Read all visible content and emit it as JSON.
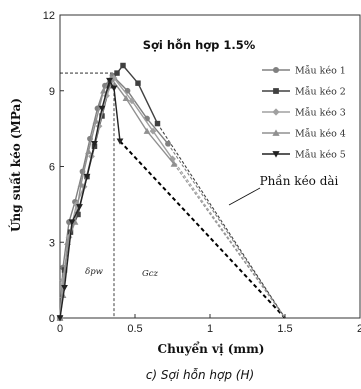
{
  "chart_data": {
    "type": "line",
    "title": "Sợi hỗn hợp 1.5%",
    "xlabel": "Chuyển vị (mm)",
    "ylabel": "Ứng suất kéo  (MPa)",
    "caption": "c) Sợi hỗn hợp (H)",
    "xlim": [
      0,
      2
    ],
    "ylim": [
      0,
      12
    ],
    "x_ticks": [
      0,
      0.5,
      1,
      1.5,
      2
    ],
    "x_tick_labels": [
      "0",
      "0.5",
      "1",
      "1.5",
      "2"
    ],
    "y_ticks": [
      0,
      3,
      6,
      9,
      12
    ],
    "y_tick_labels": [
      "0",
      "3",
      "6",
      "9",
      "12"
    ],
    "grid": false,
    "legend_position": "top-right",
    "series": [
      {
        "name": "Mẫu kéo 1",
        "color": "#808080",
        "marker": "circle",
        "x": [
          0,
          0.02,
          0.06,
          0.1,
          0.15,
          0.2,
          0.25,
          0.3,
          0.35,
          0.45,
          0.58,
          0.72
        ],
        "y": [
          0,
          2.0,
          3.8,
          4.6,
          5.8,
          7.1,
          8.3,
          9.2,
          9.6,
          9.0,
          7.9,
          6.9
        ]
      },
      {
        "name": "Mẫu kéo 2",
        "color": "#404040",
        "marker": "square",
        "x": [
          0,
          0.03,
          0.07,
          0.12,
          0.18,
          0.23,
          0.28,
          0.33,
          0.38,
          0.42,
          0.52,
          0.65
        ],
        "y": [
          0,
          1.9,
          3.4,
          4.1,
          5.6,
          6.8,
          8.0,
          9.2,
          9.7,
          10.0,
          9.3,
          7.7
        ]
      },
      {
        "name": "Mẫu kéo 3",
        "color": "#a0a0a0",
        "marker": "diamond",
        "x": [
          0,
          0.02,
          0.06,
          0.11,
          0.16,
          0.21,
          0.26,
          0.31,
          0.36,
          0.48,
          0.62,
          0.75
        ],
        "y": [
          0,
          1.5,
          3.2,
          4.5,
          5.2,
          6.4,
          7.6,
          8.8,
          9.5,
          8.6,
          7.4,
          6.3
        ]
      },
      {
        "name": "Mẫu kéo 4",
        "color": "#909090",
        "marker": "triangle-up",
        "x": [
          0,
          0.02,
          0.05,
          0.1,
          0.14,
          0.19,
          0.24,
          0.29,
          0.34,
          0.44,
          0.58,
          0.76
        ],
        "y": [
          0,
          0.9,
          3.0,
          3.8,
          5.3,
          6.6,
          7.8,
          9.0,
          9.5,
          8.7,
          7.4,
          6.1
        ]
      },
      {
        "name": "Mẫu kéo 5",
        "color": "#222222",
        "marker": "triangle-down",
        "x": [
          0,
          0.03,
          0.08,
          0.13,
          0.18,
          0.23,
          0.28,
          0.33,
          0.36,
          0.4
        ],
        "y": [
          0,
          1.2,
          3.8,
          4.4,
          5.6,
          6.9,
          8.3,
          9.4,
          9.1,
          7.0
        ]
      }
    ],
    "extension_lines": [
      {
        "x": [
          0.4,
          1.5
        ],
        "y": [
          7.0,
          0
        ],
        "style": "heavy-dash",
        "color": "#000000"
      },
      {
        "x": [
          0.72,
          1.5
        ],
        "y": [
          6.9,
          0
        ],
        "style": "dash",
        "color": "#808080"
      },
      {
        "x": [
          0.65,
          1.5
        ],
        "y": [
          7.7,
          0
        ],
        "style": "dash",
        "color": "#404040"
      },
      {
        "x": [
          0.75,
          1.5
        ],
        "y": [
          6.3,
          0
        ],
        "style": "dash",
        "color": "#a0a0a0"
      },
      {
        "x": [
          0.76,
          1.5
        ],
        "y": [
          6.1,
          0
        ],
        "style": "dash",
        "color": "#909090"
      }
    ],
    "reference_lines": {
      "peak_y": 9.7,
      "peak_x_end": 0.4,
      "split_x": 0.36
    },
    "annotations": {
      "extension_label": "Phần kéo dài",
      "region_left": "δpw",
      "region_right": "Gcz"
    }
  }
}
